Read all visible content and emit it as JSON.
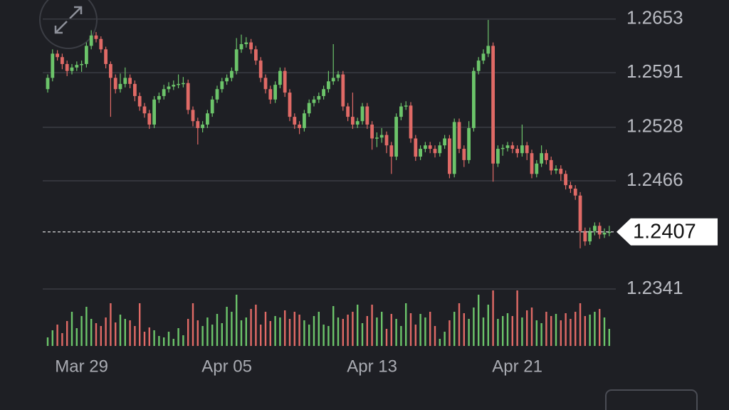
{
  "chart_data": {
    "type": "candlestick",
    "categories": [
      null,
      null,
      null,
      null,
      null,
      null,
      null,
      "Mar 29",
      null,
      null,
      null,
      null,
      null,
      null,
      null,
      null,
      null,
      null,
      null,
      null,
      null,
      null,
      null,
      null,
      null,
      null,
      null,
      null,
      null,
      null,
      null,
      null,
      null,
      null,
      null,
      null,
      null,
      "Apr 05",
      null,
      null,
      null,
      null,
      null,
      null,
      null,
      null,
      null,
      null,
      null,
      null,
      null,
      null,
      null,
      null,
      null,
      null,
      null,
      null,
      null,
      null,
      null,
      null,
      null,
      null,
      null,
      null,
      null,
      "Apr 13",
      null,
      null,
      null,
      null,
      null,
      null,
      null,
      null,
      null,
      null,
      null,
      null,
      null,
      null,
      null,
      null,
      null,
      null,
      null,
      null,
      null,
      null,
      null,
      null,
      null,
      null,
      null,
      null,
      null,
      "Apr 21",
      null,
      null,
      null,
      null,
      null,
      null,
      null,
      null,
      null,
      null,
      null,
      null,
      null,
      null,
      null,
      null,
      null,
      null,
      null
    ],
    "open": [
      1.2572,
      1.2585,
      1.2613,
      1.2609,
      1.2601,
      1.2593,
      1.2597,
      1.26,
      1.2601,
      1.2622,
      1.2634,
      1.263,
      1.2618,
      1.2601,
      1.2585,
      1.2572,
      1.2578,
      1.2585,
      1.2578,
      1.2564,
      1.2552,
      1.2544,
      1.2531,
      1.256,
      1.2564,
      1.2572,
      1.2575,
      1.2577,
      1.2578,
      1.2579,
      1.2548,
      1.2535,
      1.2527,
      1.2531,
      1.2544,
      1.256,
      1.2572,
      1.2581,
      1.2585,
      1.2593,
      1.2618,
      1.2624,
      1.2626,
      1.2618,
      1.2605,
      1.2585,
      1.2572,
      1.256,
      1.2577,
      1.2593,
      1.2568,
      1.254,
      1.2531,
      1.2527,
      1.2544,
      1.2556,
      1.256,
      1.2564,
      1.2572,
      1.2581,
      1.2585,
      1.2589,
      1.2552,
      1.254,
      1.2531,
      1.2535,
      1.2552,
      1.2531,
      1.2515,
      1.2516,
      1.2519,
      1.2507,
      1.2494,
      1.254,
      1.2552,
      1.2553,
      1.2515,
      1.2494,
      1.2503,
      1.2507,
      1.2503,
      1.2498,
      1.2507,
      1.2515,
      1.2474,
      1.2534,
      1.2503,
      1.249,
      1.2527,
      1.2593,
      1.2605,
      1.2613,
      1.2622,
      1.2486,
      1.2503,
      1.2504,
      1.2507,
      1.2503,
      1.2498,
      1.2507,
      1.2498,
      1.2474,
      1.2486,
      1.2498,
      1.249,
      1.2478,
      1.248,
      1.2474,
      1.2461,
      1.2457,
      1.2449,
      1.2408,
      1.2396,
      1.2408,
      1.2414,
      1.2404,
      1.2406
    ],
    "high": [
      1.2589,
      1.2618,
      1.2617,
      1.2613,
      1.2605,
      1.2601,
      1.2604,
      1.2605,
      1.2626,
      1.264,
      1.2638,
      1.2633,
      1.2621,
      1.2604,
      1.2589,
      1.259,
      1.2597,
      1.2589,
      1.2582,
      1.2568,
      1.2556,
      1.2548,
      1.2564,
      1.2568,
      1.2577,
      1.258,
      1.2582,
      1.2589,
      1.2586,
      1.2583,
      1.2552,
      1.2539,
      1.2535,
      1.2548,
      1.2564,
      1.2576,
      1.2585,
      1.2589,
      1.2597,
      1.2631,
      1.2635,
      1.2632,
      1.263,
      1.2622,
      1.2609,
      1.2589,
      1.2576,
      1.2581,
      1.2597,
      1.2597,
      1.2572,
      1.2544,
      1.2535,
      1.2548,
      1.256,
      1.2564,
      1.2568,
      1.2576,
      1.2593,
      1.2624,
      1.2593,
      1.2593,
      1.2556,
      1.2568,
      1.2539,
      1.2556,
      1.2556,
      1.2535,
      1.2522,
      1.2527,
      1.2523,
      1.2511,
      1.2544,
      1.2556,
      1.2558,
      1.2557,
      1.2519,
      1.2507,
      1.2511,
      1.2511,
      1.2507,
      1.2511,
      1.2519,
      1.2519,
      1.2538,
      1.2538,
      1.2507,
      1.2535,
      1.2597,
      1.2609,
      1.2618,
      1.2652,
      1.2626,
      1.2507,
      1.2508,
      1.2511,
      1.2511,
      1.2507,
      1.2531,
      1.2511,
      1.2502,
      1.249,
      1.2507,
      1.2502,
      1.2494,
      1.2484,
      1.2484,
      1.2478,
      1.2465,
      1.2461,
      1.2453,
      1.2412,
      1.2412,
      1.2418,
      1.2418,
      1.2411,
      1.2414
    ],
    "low": [
      1.2568,
      1.2581,
      1.2605,
      1.2595,
      1.2587,
      1.2589,
      1.2593,
      1.2592,
      1.2597,
      1.2618,
      1.2626,
      1.2614,
      1.2596,
      1.254,
      1.2567,
      1.2568,
      1.2574,
      1.2573,
      1.2558,
      1.2547,
      1.2539,
      1.2526,
      1.2527,
      1.2556,
      1.256,
      1.2568,
      1.2571,
      1.2573,
      1.2574,
      1.2543,
      1.2529,
      1.2508,
      1.2522,
      1.2527,
      1.254,
      1.2556,
      1.2568,
      1.2577,
      1.2581,
      1.2589,
      1.2614,
      1.262,
      1.2613,
      1.26,
      1.258,
      1.2567,
      1.2555,
      1.2556,
      1.2573,
      1.2563,
      1.2535,
      1.2526,
      1.252,
      1.2523,
      1.254,
      1.2552,
      1.2556,
      1.256,
      1.2568,
      1.2577,
      1.2581,
      1.2547,
      1.2535,
      1.2526,
      1.2527,
      1.2531,
      1.2526,
      1.2502,
      1.2505,
      1.251,
      1.2498,
      1.2474,
      1.249,
      1.2536,
      1.2548,
      1.251,
      1.2489,
      1.249,
      1.2499,
      1.2498,
      1.2493,
      1.2494,
      1.2503,
      1.2469,
      1.247,
      1.2498,
      1.2482,
      1.2486,
      1.2523,
      1.2589,
      1.2601,
      1.2609,
      1.2465,
      1.2482,
      1.2495,
      1.25,
      1.2498,
      1.2493,
      1.2494,
      1.249,
      1.2469,
      1.247,
      1.2482,
      1.2485,
      1.2473,
      1.2474,
      1.2466,
      1.2456,
      1.2452,
      1.2444,
      1.2388,
      1.2391,
      1.2392,
      1.2403,
      1.2399,
      1.24,
      1.2402
    ],
    "close": [
      1.2585,
      1.2613,
      1.2609,
      1.2601,
      1.2593,
      1.2597,
      1.26,
      1.2601,
      1.2622,
      1.2634,
      1.263,
      1.2618,
      1.2601,
      1.2585,
      1.2572,
      1.2578,
      1.2585,
      1.2578,
      1.2564,
      1.2552,
      1.2544,
      1.2531,
      1.256,
      1.2564,
      1.2572,
      1.2575,
      1.2577,
      1.2578,
      1.2579,
      1.2548,
      1.2535,
      1.2527,
      1.2531,
      1.2544,
      1.256,
      1.2572,
      1.2581,
      1.2585,
      1.2593,
      1.2618,
      1.2624,
      1.2626,
      1.2618,
      1.2605,
      1.2585,
      1.2572,
      1.256,
      1.2577,
      1.2593,
      1.2568,
      1.254,
      1.2531,
      1.2527,
      1.2544,
      1.2556,
      1.256,
      1.2564,
      1.2572,
      1.2581,
      1.2585,
      1.2589,
      1.2552,
      1.254,
      1.2531,
      1.2535,
      1.2552,
      1.2531,
      1.2515,
      1.2516,
      1.2519,
      1.2507,
      1.2494,
      1.254,
      1.2552,
      1.2553,
      1.2515,
      1.2494,
      1.2503,
      1.2507,
      1.2503,
      1.2498,
      1.2507,
      1.2515,
      1.2474,
      1.2534,
      1.2503,
      1.249,
      1.2527,
      1.2593,
      1.2605,
      1.2613,
      1.2622,
      1.2486,
      1.2503,
      1.2504,
      1.2507,
      1.2503,
      1.2498,
      1.2507,
      1.2498,
      1.2474,
      1.2486,
      1.2498,
      1.249,
      1.2478,
      1.248,
      1.2474,
      1.2461,
      1.2457,
      1.2449,
      1.2408,
      1.2396,
      1.2408,
      1.2414,
      1.2404,
      1.2406,
      1.2407
    ],
    "volume": [
      12,
      22,
      30,
      18,
      35,
      48,
      25,
      42,
      55,
      38,
      32,
      28,
      40,
      60,
      33,
      44,
      38,
      36,
      28,
      60,
      20,
      26,
      22,
      14,
      12,
      20,
      10,
      25,
      15,
      38,
      60,
      36,
      28,
      40,
      30,
      45,
      32,
      55,
      48,
      72,
      36,
      40,
      52,
      58,
      30,
      48,
      35,
      42,
      40,
      50,
      38,
      48,
      44,
      36,
      30,
      42,
      48,
      30,
      28,
      56,
      40,
      38,
      44,
      48,
      58,
      32,
      42,
      58,
      40,
      48,
      24,
      45,
      38,
      28,
      60,
      46,
      30,
      45,
      40,
      48,
      28,
      10,
      20,
      36,
      48,
      60,
      46,
      38,
      54,
      72,
      40,
      58,
      78,
      38,
      42,
      46,
      42,
      78,
      40,
      50,
      54,
      36,
      32,
      48,
      42,
      45,
      36,
      46,
      38,
      48,
      60,
      42,
      44,
      48,
      52,
      40,
      24
    ],
    "up_color": "#6cc46a",
    "down_color": "#e06a66",
    "ylim": [
      1.2341,
      1.2675
    ],
    "yticks": [
      1.2341,
      1.2466,
      1.2528,
      1.2591,
      1.2653
    ],
    "last_price": 1.2407,
    "grid": true
  }
}
